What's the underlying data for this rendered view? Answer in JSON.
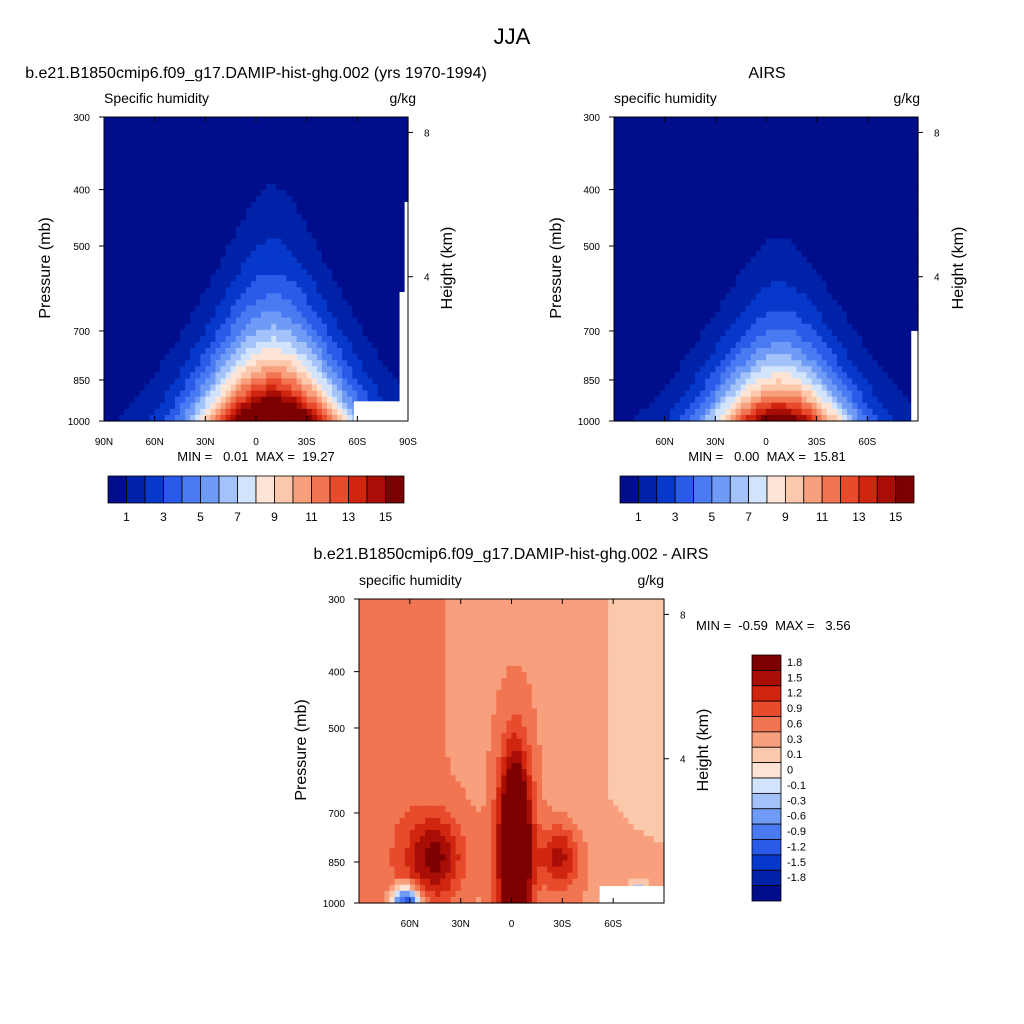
{
  "figure_title": "JJA",
  "colors": {
    "abs_bins": [
      "#000e8c",
      "#0022a9",
      "#0638cc",
      "#2a5ae8",
      "#4a7af2",
      "#6f9af6",
      "#a3c2fa",
      "#d2e4fc",
      "#fde4d5",
      "#fbc8ac",
      "#f8a07e",
      "#f27552",
      "#e84a2c",
      "#d0250e",
      "#a80e06",
      "#7d0000"
    ],
    "diff_bins": [
      "#000e8c",
      "#0022a9",
      "#0638cc",
      "#2a5ae8",
      "#4a7af2",
      "#6f9af6",
      "#a3c2fa",
      "#d2e4fc",
      "#fde4d5",
      "#fbc8ac",
      "#f8a07e",
      "#f27552",
      "#e84a2c",
      "#d0250e",
      "#a80e06",
      "#7d0000"
    ]
  },
  "chart_data": [
    {
      "type": "heatmap",
      "title": "b.e21.B1850cmip6.f09_g17.DAMIP-hist-ghg.002 (yrs 1970-1994)",
      "left_subtitle": "Specific humidity",
      "right_subtitle": "g/kg",
      "ylabel": "Pressure (mb)",
      "ylabel_right": "Height (km)",
      "x_ticks": [
        "90N",
        "60N",
        "30N",
        "0",
        "30S",
        "60S",
        "90S"
      ],
      "x_tick_lats": [
        90,
        60,
        30,
        0,
        -30,
        -60,
        -90
      ],
      "xlim": [
        90,
        -90
      ],
      "y_ticks": [
        "300",
        "400",
        "500",
        "700",
        "850",
        "1000"
      ],
      "y_tick_values": [
        300,
        400,
        500,
        700,
        850,
        1000
      ],
      "ylim": [
        300,
        1000
      ],
      "y_scale": "log",
      "right_ticks": [
        "8",
        "4"
      ],
      "right_tick_km": [
        8,
        4
      ],
      "min_max": "MIN =   0.01  MAX =  19.27",
      "min": 0.01,
      "max": 19.27,
      "field": {
        "peak": 19.27,
        "peak_lat": -10,
        "scale_height": 2.2,
        "width_sfc": 42,
        "width_top": 16
      },
      "colorbar_labels": [
        "1",
        "3",
        "5",
        "7",
        "9",
        "11",
        "13",
        "15"
      ],
      "levels": [
        1,
        2,
        3,
        4,
        5,
        6,
        7,
        8,
        9,
        10,
        11,
        12,
        13,
        14,
        15
      ]
    },
    {
      "type": "heatmap",
      "title": "AIRS",
      "left_subtitle": "specific humidity",
      "right_subtitle": "g/kg",
      "ylabel": "Pressure (mb)",
      "ylabel_right": "Height (km)",
      "x_ticks": [
        "60N",
        "30N",
        "0",
        "30S",
        "60S"
      ],
      "x_tick_lats": [
        60,
        30,
        0,
        -30,
        -60
      ],
      "xlim": [
        90,
        -90
      ],
      "y_ticks": [
        "300",
        "400",
        "500",
        "700",
        "850",
        "1000"
      ],
      "y_tick_values": [
        300,
        400,
        500,
        700,
        850,
        1000
      ],
      "ylim": [
        300,
        1000
      ],
      "y_scale": "log",
      "right_ticks": [
        "8",
        "4"
      ],
      "right_tick_km": [
        8,
        4
      ],
      "min_max": "MIN =   0.00  MAX =  15.81",
      "min": 0.0,
      "max": 15.81,
      "field": {
        "peak": 15.81,
        "peak_lat": -8,
        "scale_height": 1.8,
        "width_sfc": 40,
        "width_top": 14
      },
      "colorbar_labels": [
        "1",
        "3",
        "5",
        "7",
        "9",
        "11",
        "13",
        "15"
      ],
      "levels": [
        1,
        2,
        3,
        4,
        5,
        6,
        7,
        8,
        9,
        10,
        11,
        12,
        13,
        14,
        15
      ]
    },
    {
      "type": "heatmap",
      "title": "b.e21.B1850cmip6.f09_g17.DAMIP-hist-ghg.002 - AIRS",
      "left_subtitle": "specific humidity",
      "right_subtitle": "g/kg",
      "ylabel": "Pressure (mb)",
      "ylabel_right": "Height (km)",
      "x_ticks": [
        "60N",
        "30N",
        "0",
        "30S",
        "60S"
      ],
      "x_tick_lats": [
        60,
        30,
        0,
        -30,
        -60
      ],
      "xlim": [
        90,
        -90
      ],
      "y_ticks": [
        "300",
        "400",
        "500",
        "700",
        "850",
        "1000"
      ],
      "y_tick_values": [
        300,
        400,
        500,
        700,
        850,
        1000
      ],
      "ylim": [
        300,
        1000
      ],
      "y_scale": "log",
      "right_ticks": [
        "8",
        "4"
      ],
      "right_tick_km": [
        8,
        4
      ],
      "min_max": "MIN =  -0.59  MAX =   3.56",
      "min": -0.59,
      "max": 3.56,
      "colorbar_labels": [
        "1.8",
        "1.5",
        "1.2",
        "0.9",
        "0.6",
        "0.3",
        "0.1",
        "0",
        "-0.1",
        "-0.3",
        "-0.6",
        "-0.9",
        "-1.2",
        "-1.5",
        "-1.8"
      ],
      "levels": [
        -1.8,
        -1.5,
        -1.2,
        -0.9,
        -0.6,
        -0.3,
        -0.1,
        0,
        0.1,
        0.3,
        0.6,
        0.9,
        1.2,
        1.5,
        1.8
      ]
    }
  ]
}
